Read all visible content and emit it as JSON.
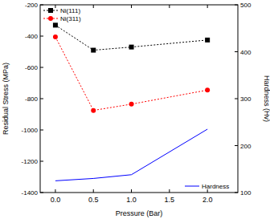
{
  "chart_data": {
    "type": "line",
    "x_label": "Pressure (Bar)",
    "y_label": "Residual Stress (MPa)",
    "y2_label": "Hardness (Hv)",
    "x": [
      0,
      0.5,
      1,
      2
    ],
    "series": [
      {
        "name": "Ni(111)",
        "color": "#000000",
        "marker": "square",
        "line_style": "dotted",
        "values": [
          -330,
          -490,
          -470,
          -425
        ]
      },
      {
        "name": "Ni(311)",
        "color": "#ff0000",
        "marker": "circle",
        "line_style": "dotted",
        "values": [
          -405,
          -875,
          -835,
          -745
        ]
      },
      {
        "name": "Hardness",
        "color": "#0000ff",
        "marker": "none",
        "line_style": "solid",
        "axis": "y2",
        "values": [
          125,
          130,
          138,
          235
        ]
      }
    ],
    "xlim": [
      -0.2,
      2.4
    ],
    "xticks": [
      {
        "value": 0,
        "label": "0.0"
      },
      {
        "value": 0.5,
        "label": "0.5"
      },
      {
        "value": 1,
        "label": "1.0"
      },
      {
        "value": 1.5,
        "label": "1.5"
      },
      {
        "value": 2,
        "label": "2.0"
      }
    ],
    "ylim": [
      -1400,
      -200
    ],
    "yticks": [
      -1400,
      -1200,
      -1000,
      -800,
      -600,
      -400,
      -200
    ],
    "y2lim": [
      100,
      500
    ],
    "y2ticks": [
      100,
      200,
      300,
      400,
      500
    ],
    "legend": "upper left",
    "grid": false
  }
}
